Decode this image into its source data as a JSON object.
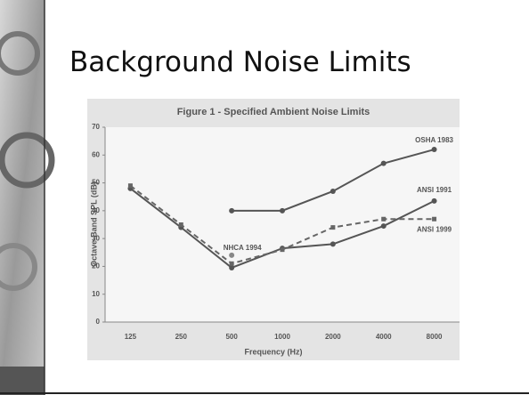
{
  "slide_title": "Background Noise Limits",
  "chart_data": {
    "type": "line",
    "title": "Figure 1 - Specified Ambient Noise Limits",
    "x_label": "Frequency (Hz)",
    "y_label": "Octave-Band SPL (dB)",
    "categories": [
      "125",
      "250",
      "500",
      "1000",
      "2000",
      "4000",
      "8000"
    ],
    "series": [
      {
        "name": "OSHA 1983",
        "color": "#555555",
        "dashed": false,
        "values": [
          null,
          null,
          40,
          40,
          47,
          57,
          62
        ]
      },
      {
        "name": "ANSI 1991",
        "color": "#555555",
        "dashed": false,
        "values": [
          48,
          34,
          19.5,
          26.5,
          28,
          34.5,
          43.5
        ]
      },
      {
        "name": "ANSI 1999",
        "color": "#666666",
        "dashed": true,
        "values": [
          49,
          35,
          21,
          26,
          34,
          37,
          37
        ]
      },
      {
        "name": "NHCA 1994",
        "color": "#888888",
        "dashed": false,
        "values": [
          null,
          null,
          24,
          null,
          null,
          null,
          null
        ]
      }
    ],
    "ylim": [
      0,
      70
    ],
    "yticks": [
      0,
      10,
      20,
      30,
      40,
      50,
      60,
      70
    ],
    "grid": false
  }
}
